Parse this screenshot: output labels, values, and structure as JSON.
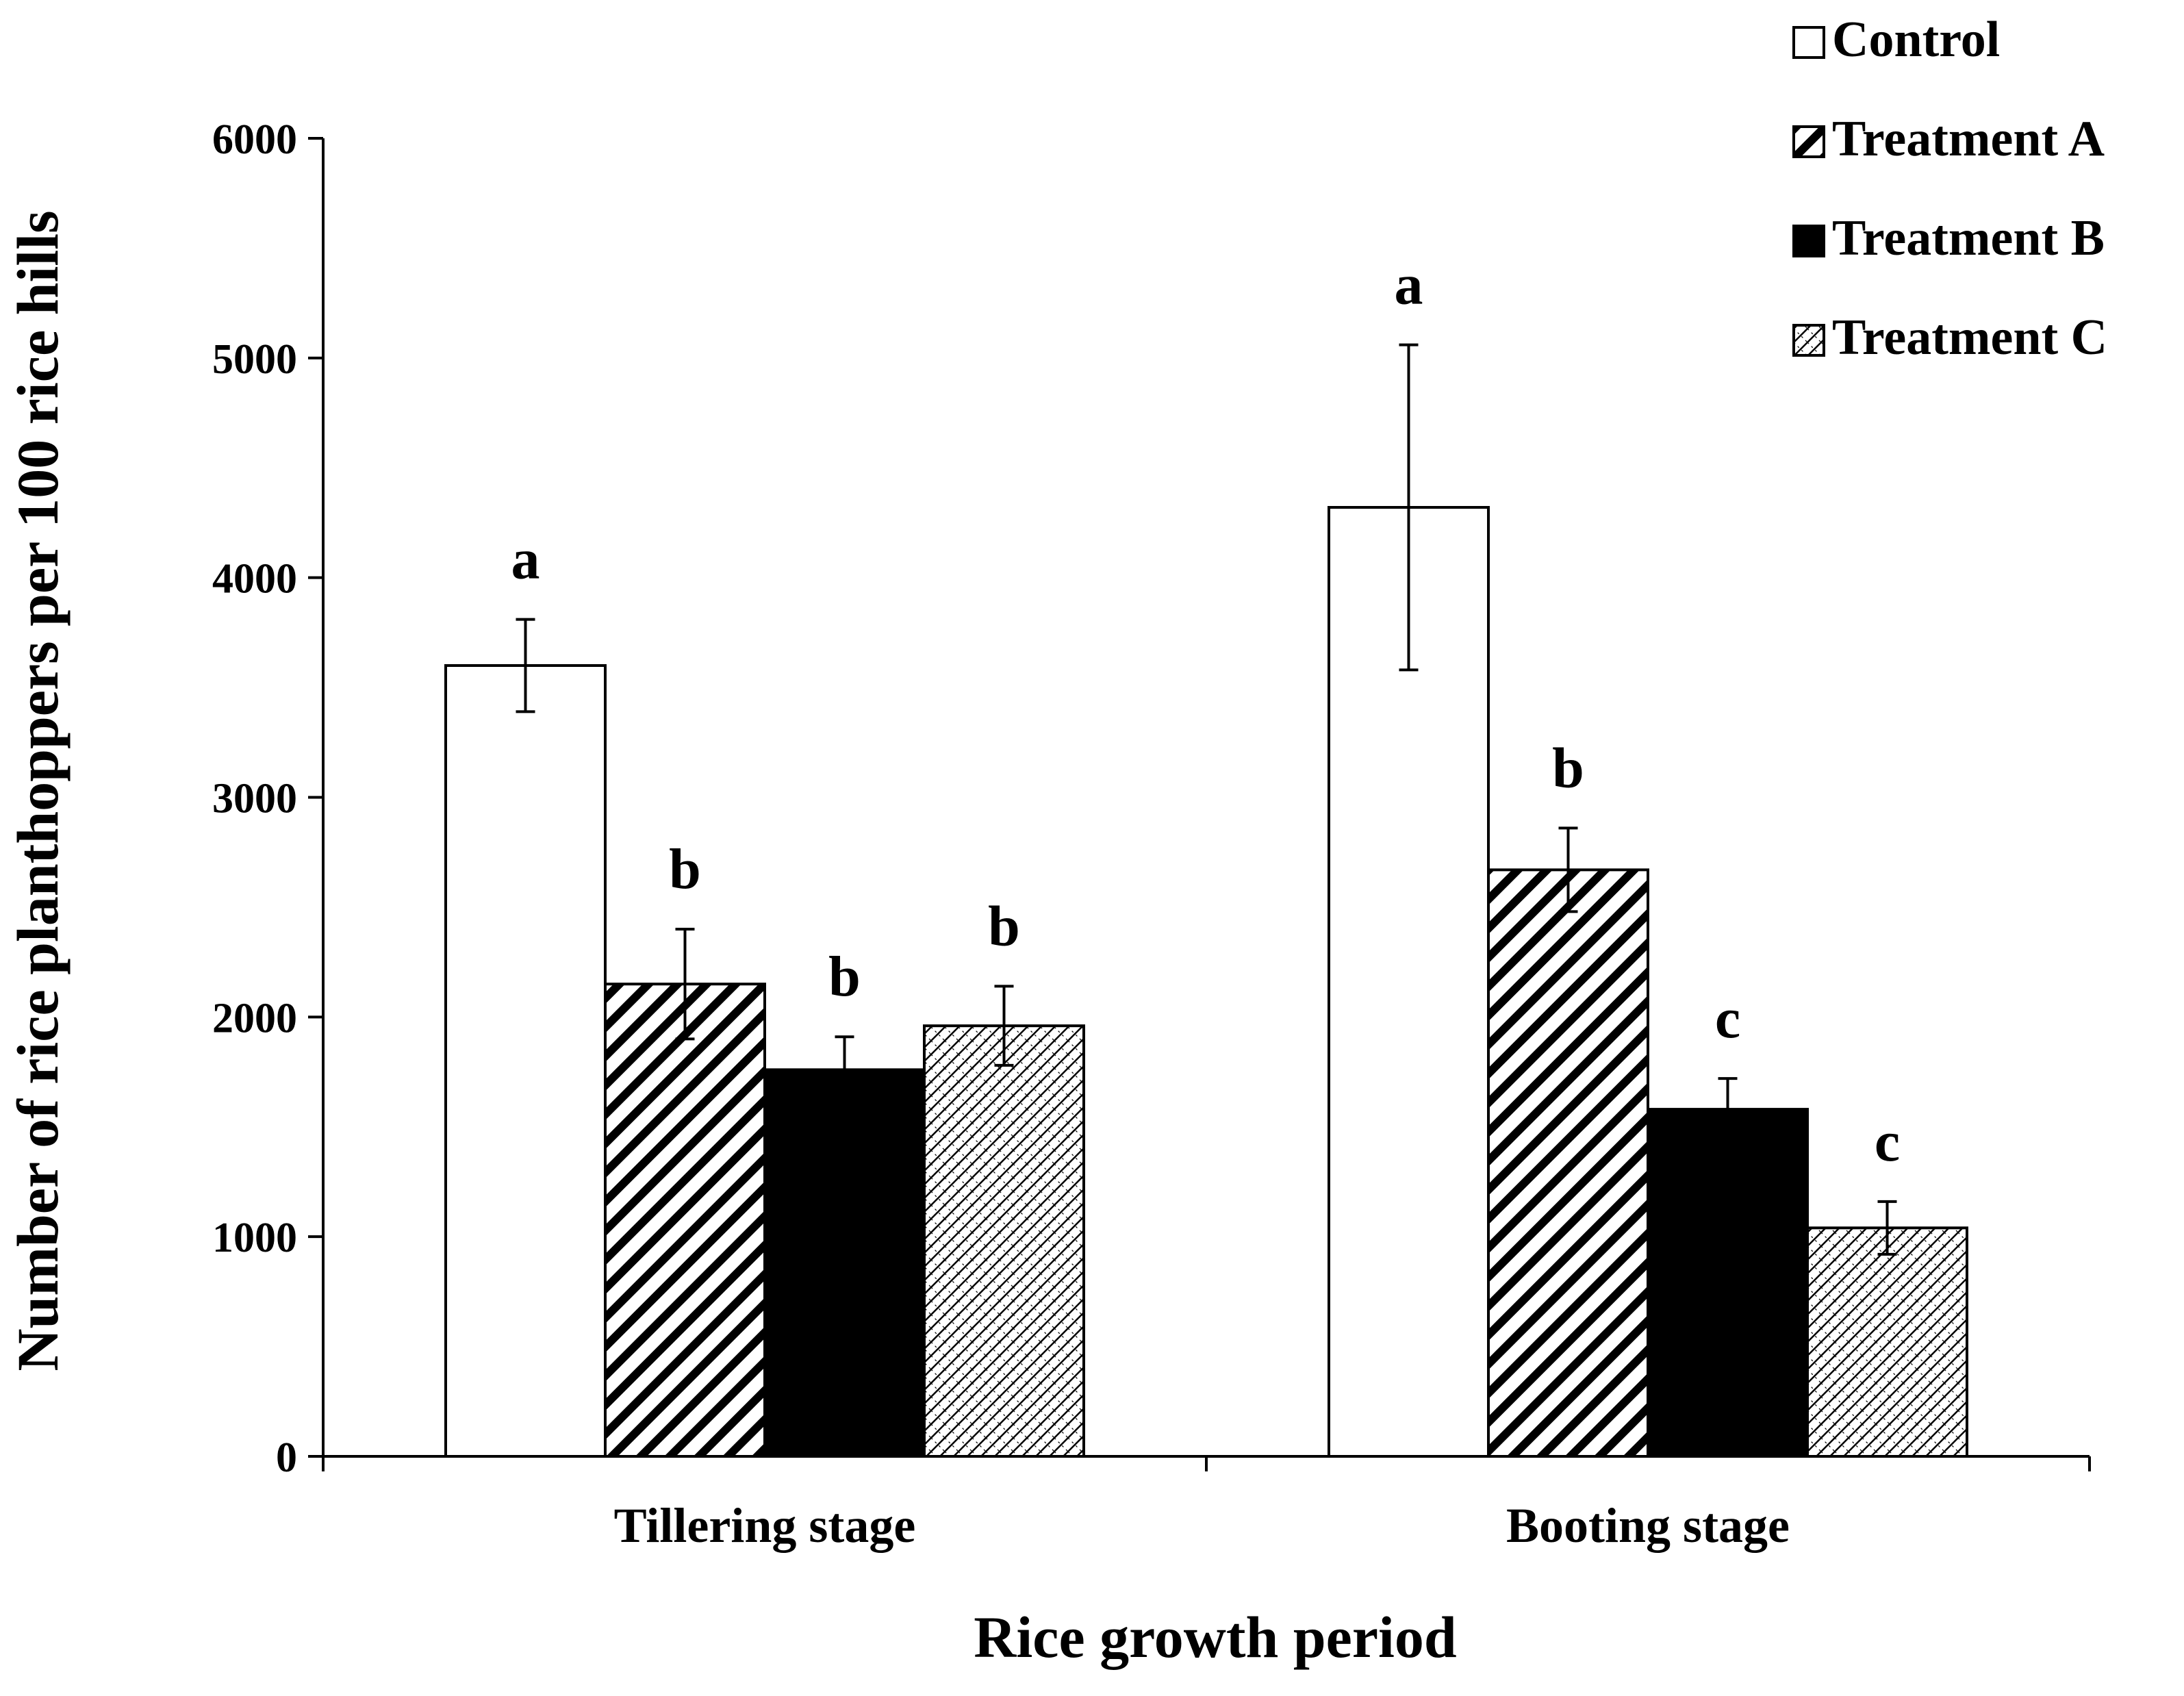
{
  "chart_data": {
    "type": "bar",
    "title": "",
    "xlabel": "Rice growth period",
    "ylabel": "Number of rice planthoppers per 100 rice hills",
    "ylim": [
      0,
      6000
    ],
    "yticks": [
      0,
      1000,
      2000,
      3000,
      4000,
      5000,
      6000
    ],
    "grid": false,
    "legend_position": "top-right",
    "categories": [
      "Tillering stage",
      "Booting stage"
    ],
    "series": [
      {
        "name": "Control",
        "pattern": "white",
        "values": [
          3600,
          4320
        ],
        "errors": [
          210,
          740
        ],
        "letters": [
          "a",
          "a"
        ]
      },
      {
        "name": "Treatment A",
        "pattern": "diagonal",
        "values": [
          2150,
          2670
        ],
        "errors": [
          250,
          190
        ],
        "letters": [
          "b",
          "b"
        ]
      },
      {
        "name": "Treatment B",
        "pattern": "solid",
        "values": [
          1760,
          1580
        ],
        "errors": [
          150,
          140
        ],
        "letters": [
          "b",
          "c"
        ]
      },
      {
        "name": "Treatment C",
        "pattern": "crosshatch",
        "values": [
          1960,
          1040
        ],
        "errors": [
          180,
          120
        ],
        "letters": [
          "b",
          "c"
        ]
      }
    ],
    "colors": {
      "bar_stroke": "#000000",
      "fill_white": "#ffffff",
      "fill_solid": "#000000"
    }
  }
}
